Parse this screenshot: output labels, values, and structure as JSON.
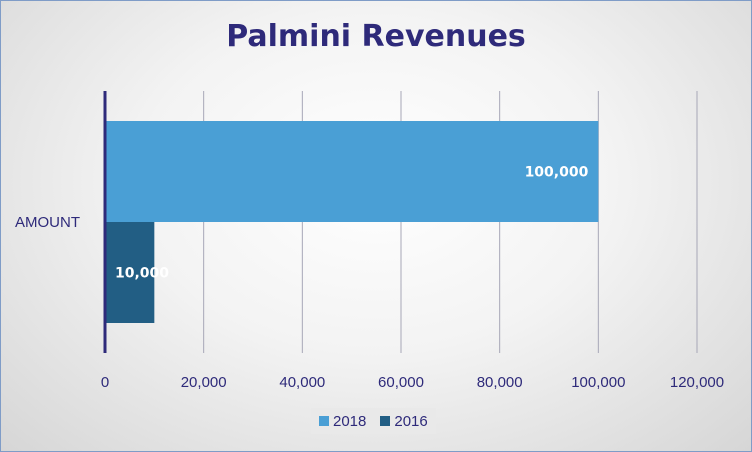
{
  "chart_data": {
    "type": "bar",
    "orientation": "horizontal",
    "title": "Palmini Revenues",
    "categories": [
      "AMOUNT"
    ],
    "series": [
      {
        "name": "2018",
        "values": [
          100000
        ],
        "color": "#4a9fd5",
        "label": "100,000"
      },
      {
        "name": "2016",
        "values": [
          10000
        ],
        "color": "#225e84",
        "label": "10,000"
      }
    ],
    "xlim": [
      0,
      120000
    ],
    "x_ticks": [
      0,
      20000,
      40000,
      60000,
      80000,
      100000,
      120000
    ],
    "x_tick_labels": [
      "0",
      "20,000",
      "40,000",
      "60,000",
      "80,000",
      "100,000",
      "120,000"
    ],
    "grid": "vertical",
    "legend_position": "bottom",
    "colors": {
      "title": "#2e2a7a",
      "axis": "#2e2a7a",
      "grid": "#a7a7b7"
    }
  }
}
